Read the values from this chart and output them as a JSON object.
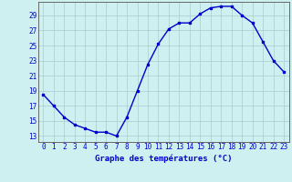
{
  "hours": [
    0,
    1,
    2,
    3,
    4,
    5,
    6,
    7,
    8,
    9,
    10,
    11,
    12,
    13,
    14,
    15,
    16,
    17,
    18,
    19,
    20,
    21,
    22,
    23
  ],
  "temps": [
    18.5,
    17.0,
    15.5,
    14.5,
    14.0,
    13.5,
    13.5,
    13.0,
    15.5,
    19.0,
    22.5,
    25.2,
    27.2,
    28.0,
    28.0,
    29.2,
    30.0,
    30.2,
    30.2,
    29.0,
    28.0,
    25.5,
    23.0,
    21.5
  ],
  "line_color": "#0000cc",
  "bg_color": "#cff0f0",
  "grid_color": "#aacccc",
  "xlabel": "Graphe des températures (°C)",
  "xlabel_color": "#0000cc",
  "tick_color": "#0000cc",
  "ylabel_ticks": [
    13,
    15,
    17,
    19,
    21,
    23,
    25,
    27,
    29
  ],
  "xlim": [
    -0.5,
    23.5
  ],
  "ylim": [
    12.2,
    30.8
  ],
  "marker": "s",
  "markersize": 1.8,
  "linewidth": 1.0,
  "tick_fontsize": 5.5,
  "xlabel_fontsize": 6.5
}
